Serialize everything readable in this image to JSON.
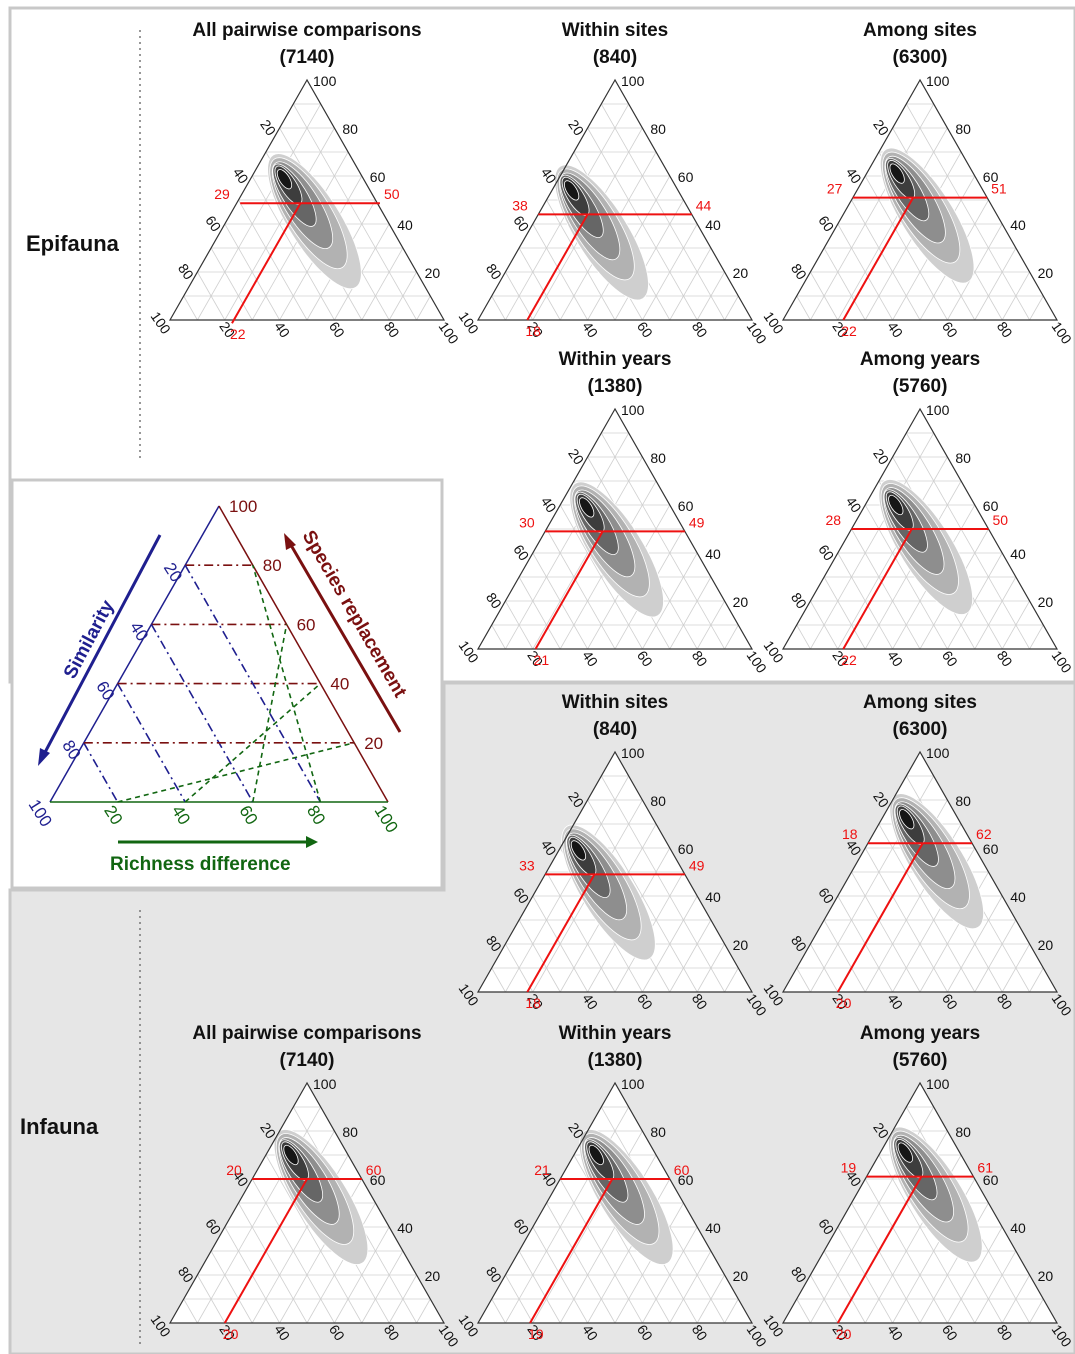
{
  "groups": [
    {
      "label": "Epifauna"
    },
    {
      "label": "Infauna"
    }
  ],
  "legend": {
    "similarity_label": "Similarity",
    "replacement_label": "Species replacement",
    "richness_label": "Richness difference",
    "ticks": [
      "20",
      "40",
      "60",
      "80",
      "100"
    ],
    "colors": {
      "similarity": "#1f1f8f",
      "replacement": "#7a1010",
      "richness": "#116611"
    }
  },
  "chart_data": [
    {
      "type": "ternary",
      "group": "Epifauna",
      "title": "All pairwise comparisons",
      "n": "(7140)",
      "similarity": 29,
      "replacement": 50,
      "richness": 22,
      "density": "contour"
    },
    {
      "type": "ternary",
      "group": "Epifauna",
      "title": "Within sites",
      "n": "(840)",
      "similarity": 38,
      "replacement": 44,
      "richness": 18,
      "density": "contour"
    },
    {
      "type": "ternary",
      "group": "Epifauna",
      "title": "Among sites",
      "n": "(6300)",
      "similarity": 27,
      "replacement": 51,
      "richness": 22,
      "density": "contour"
    },
    {
      "type": "ternary",
      "group": "Epifauna",
      "title": "Within years",
      "n": "(1380)",
      "similarity": 30,
      "replacement": 49,
      "richness": 21,
      "density": "contour"
    },
    {
      "type": "ternary",
      "group": "Epifauna",
      "title": "Among years",
      "n": "(5760)",
      "similarity": 28,
      "replacement": 50,
      "richness": 22,
      "density": "contour"
    },
    {
      "type": "ternary",
      "group": "Infauna",
      "title": "Within sites",
      "n": "(840)",
      "similarity": 33,
      "replacement": 49,
      "richness": 18,
      "density": "contour"
    },
    {
      "type": "ternary",
      "group": "Infauna",
      "title": "Among sites",
      "n": "(6300)",
      "similarity": 18,
      "replacement": 62,
      "richness": 20,
      "density": "contour"
    },
    {
      "type": "ternary",
      "group": "Infauna",
      "title": "All pairwise comparisons",
      "n": "(7140)",
      "similarity": 20,
      "replacement": 60,
      "richness": 20,
      "density": "contour"
    },
    {
      "type": "ternary",
      "group": "Infauna",
      "title": "Within years",
      "n": "(1380)",
      "similarity": 21,
      "replacement": 60,
      "richness": 19,
      "density": "contour"
    },
    {
      "type": "ternary",
      "group": "Infauna",
      "title": "Among years",
      "n": "(5760)",
      "similarity": 19,
      "replacement": 61,
      "richness": 20,
      "density": "contour"
    }
  ],
  "axis_ticks": {
    "values": [
      "20",
      "40",
      "60",
      "80",
      "100"
    ],
    "apex": "100"
  },
  "colors": {
    "epi_bg": "#ffffff",
    "inf_bg": "#e6e6e6",
    "frame": "#c8c8c8",
    "marker": "#ee1111"
  }
}
